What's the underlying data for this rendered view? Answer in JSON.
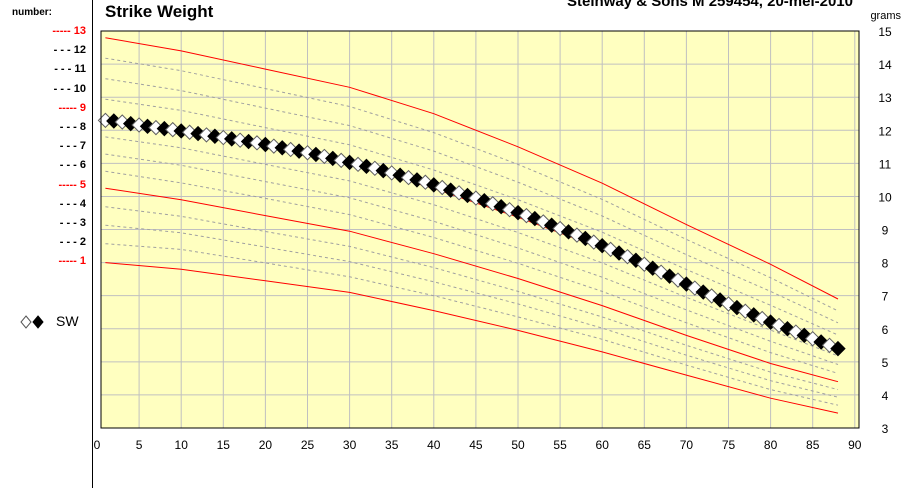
{
  "legend": {
    "header": "number:",
    "items": [
      {
        "label": "----- 13",
        "color": "#ff0000"
      },
      {
        "label": "- - - 12",
        "color": "#000000"
      },
      {
        "label": "- - - 11",
        "color": "#000000"
      },
      {
        "label": "- - - 10",
        "color": "#000000"
      },
      {
        "label": "----- 9",
        "color": "#ff0000"
      },
      {
        "label": "- - - 8",
        "color": "#000000"
      },
      {
        "label": "- - - 7",
        "color": "#000000"
      },
      {
        "label": "- - - 6",
        "color": "#000000"
      },
      {
        "label": "----- 5",
        "color": "#ff0000"
      },
      {
        "label": "- - - 4",
        "color": "#000000"
      },
      {
        "label": "- - - 3",
        "color": "#000000"
      },
      {
        "label": "- - - 2",
        "color": "#000000"
      },
      {
        "label": "----- 1",
        "color": "#ff0000"
      }
    ],
    "series_label": "SW"
  },
  "colors": {
    "plot_bg": "#ffffc0",
    "grid": "#c0c0c0",
    "red_line": "#ff0000",
    "dashed_line": "#a0a0a0"
  },
  "chart_data": {
    "type": "line",
    "title": "Strike Weight",
    "subtitle": "Steinway & Sons M 259454, 20-mei-2010",
    "ylabel": "grams",
    "xlim": [
      0,
      90
    ],
    "ylim": [
      3,
      15
    ],
    "x_ticks": [
      0,
      5,
      10,
      15,
      20,
      25,
      30,
      35,
      40,
      45,
      50,
      55,
      60,
      65,
      70,
      75,
      80,
      85,
      90
    ],
    "y_ticks": [
      3,
      4,
      5,
      6,
      7,
      8,
      9,
      10,
      11,
      12,
      13,
      14,
      15
    ],
    "grid": true,
    "reference_curves": [
      {
        "name": "13",
        "style": "solid",
        "points": [
          [
            1,
            14.8
          ],
          [
            10,
            14.4
          ],
          [
            20,
            13.85
          ],
          [
            30,
            13.3
          ],
          [
            40,
            12.5
          ],
          [
            50,
            11.5
          ],
          [
            60,
            10.4
          ],
          [
            70,
            9.15
          ],
          [
            80,
            7.95
          ],
          [
            88,
            6.9
          ]
        ]
      },
      {
        "name": "12",
        "style": "dashed",
        "points": [
          [
            1,
            14.18
          ],
          [
            10,
            13.8
          ],
          [
            20,
            13.26
          ],
          [
            30,
            12.72
          ],
          [
            40,
            11.93
          ],
          [
            50,
            10.97
          ],
          [
            60,
            9.91
          ],
          [
            70,
            8.7
          ],
          [
            80,
            7.54
          ],
          [
            88,
            6.54
          ]
        ]
      },
      {
        "name": "11",
        "style": "dashed",
        "points": [
          [
            1,
            13.56
          ],
          [
            10,
            13.2
          ],
          [
            20,
            12.67
          ],
          [
            30,
            12.14
          ],
          [
            40,
            11.37
          ],
          [
            50,
            10.43
          ],
          [
            60,
            9.41
          ],
          [
            70,
            8.24
          ],
          [
            80,
            7.13
          ],
          [
            88,
            6.18
          ]
        ]
      },
      {
        "name": "10",
        "style": "dashed",
        "points": [
          [
            1,
            12.94
          ],
          [
            10,
            12.6
          ],
          [
            20,
            12.08
          ],
          [
            30,
            11.56
          ],
          [
            40,
            10.8
          ],
          [
            50,
            9.9
          ],
          [
            60,
            8.92
          ],
          [
            70,
            7.79
          ],
          [
            80,
            6.71
          ],
          [
            88,
            5.81
          ]
        ]
      },
      {
        "name": "9",
        "style": "solid",
        "points": [
          [
            1,
            12.32
          ],
          [
            10,
            12.0
          ],
          [
            20,
            11.48
          ],
          [
            30,
            10.98
          ],
          [
            40,
            10.24
          ],
          [
            50,
            9.37
          ],
          [
            60,
            8.42
          ],
          [
            70,
            7.34
          ],
          [
            80,
            6.3
          ],
          [
            88,
            5.45
          ]
        ]
      },
      {
        "name": "8",
        "style": "dashed",
        "points": [
          [
            1,
            11.8
          ],
          [
            10,
            11.47
          ],
          [
            20,
            10.97
          ],
          [
            30,
            10.47
          ],
          [
            40,
            9.75
          ],
          [
            50,
            8.91
          ],
          [
            60,
            7.99
          ],
          [
            70,
            6.95
          ],
          [
            80,
            5.96
          ],
          [
            88,
            5.18
          ]
        ]
      },
      {
        "name": "7",
        "style": "dashed",
        "points": [
          [
            1,
            11.28
          ],
          [
            10,
            10.94
          ],
          [
            20,
            10.45
          ],
          [
            30,
            9.96
          ],
          [
            40,
            9.25
          ],
          [
            50,
            8.44
          ],
          [
            60,
            7.56
          ],
          [
            70,
            6.57
          ],
          [
            80,
            5.62
          ],
          [
            88,
            4.92
          ]
        ]
      },
      {
        "name": "6",
        "style": "dashed",
        "points": [
          [
            1,
            10.76
          ],
          [
            10,
            10.41
          ],
          [
            20,
            9.94
          ],
          [
            30,
            9.45
          ],
          [
            40,
            8.76
          ],
          [
            50,
            7.98
          ],
          [
            60,
            7.13
          ],
          [
            70,
            6.18
          ],
          [
            80,
            5.28
          ],
          [
            88,
            4.65
          ]
        ]
      },
      {
        "name": "5",
        "style": "solid",
        "points": [
          [
            1,
            10.25
          ],
          [
            10,
            9.9
          ],
          [
            20,
            9.42
          ],
          [
            30,
            8.95
          ],
          [
            40,
            8.27
          ],
          [
            50,
            7.52
          ],
          [
            60,
            6.7
          ],
          [
            70,
            5.8
          ],
          [
            80,
            4.95
          ],
          [
            88,
            4.4
          ]
        ]
      },
      {
        "name": "4",
        "style": "dashed",
        "points": [
          [
            1,
            9.69
          ],
          [
            10,
            9.4
          ],
          [
            20,
            8.94
          ],
          [
            30,
            8.49
          ],
          [
            40,
            7.85
          ],
          [
            50,
            7.13
          ],
          [
            60,
            6.36
          ],
          [
            70,
            5.5
          ],
          [
            80,
            4.69
          ],
          [
            88,
            4.16
          ]
        ]
      },
      {
        "name": "3",
        "style": "dashed",
        "points": [
          [
            1,
            9.13
          ],
          [
            10,
            8.9
          ],
          [
            20,
            8.47
          ],
          [
            30,
            8.03
          ],
          [
            40,
            7.42
          ],
          [
            50,
            6.75
          ],
          [
            60,
            6.02
          ],
          [
            70,
            5.2
          ],
          [
            80,
            4.43
          ],
          [
            88,
            3.93
          ]
        ]
      },
      {
        "name": "2",
        "style": "dashed",
        "points": [
          [
            1,
            8.57
          ],
          [
            10,
            8.4
          ],
          [
            20,
            7.99
          ],
          [
            30,
            7.57
          ],
          [
            40,
            7.0
          ],
          [
            50,
            6.36
          ],
          [
            60,
            5.68
          ],
          [
            70,
            4.9
          ],
          [
            80,
            4.16
          ],
          [
            88,
            3.69
          ]
        ]
      },
      {
        "name": "1",
        "style": "solid",
        "points": [
          [
            1,
            8.0
          ],
          [
            10,
            7.8
          ],
          [
            20,
            7.45
          ],
          [
            30,
            7.1
          ],
          [
            40,
            6.55
          ],
          [
            50,
            5.95
          ],
          [
            60,
            5.3
          ],
          [
            70,
            4.6
          ],
          [
            80,
            3.9
          ],
          [
            88,
            3.45
          ]
        ]
      }
    ],
    "series": [
      {
        "name": "SW",
        "points": [
          [
            1,
            12.3
          ],
          [
            2,
            12.28
          ],
          [
            3,
            12.25
          ],
          [
            4,
            12.2
          ],
          [
            5,
            12.16
          ],
          [
            6,
            12.12
          ],
          [
            7,
            12.08
          ],
          [
            8,
            12.05
          ],
          [
            9,
            12.02
          ],
          [
            10,
            11.98
          ],
          [
            11,
            11.94
          ],
          [
            12,
            11.9
          ],
          [
            13,
            11.86
          ],
          [
            14,
            11.82
          ],
          [
            15,
            11.78
          ],
          [
            16,
            11.74
          ],
          [
            17,
            11.7
          ],
          [
            18,
            11.66
          ],
          [
            19,
            11.62
          ],
          [
            20,
            11.57
          ],
          [
            21,
            11.52
          ],
          [
            22,
            11.47
          ],
          [
            23,
            11.42
          ],
          [
            24,
            11.37
          ],
          [
            25,
            11.32
          ],
          [
            26,
            11.27
          ],
          [
            27,
            11.21
          ],
          [
            28,
            11.15
          ],
          [
            29,
            11.09
          ],
          [
            30,
            11.03
          ],
          [
            31,
            10.97
          ],
          [
            32,
            10.91
          ],
          [
            33,
            10.85
          ],
          [
            34,
            10.78
          ],
          [
            35,
            10.71
          ],
          [
            36,
            10.64
          ],
          [
            37,
            10.57
          ],
          [
            38,
            10.5
          ],
          [
            39,
            10.43
          ],
          [
            40,
            10.35
          ],
          [
            41,
            10.27
          ],
          [
            42,
            10.19
          ],
          [
            43,
            10.11
          ],
          [
            44,
            10.03
          ],
          [
            45,
            9.95
          ],
          [
            46,
            9.87
          ],
          [
            47,
            9.78
          ],
          [
            48,
            9.69
          ],
          [
            49,
            9.6
          ],
          [
            50,
            9.51
          ],
          [
            51,
            9.42
          ],
          [
            52,
            9.33
          ],
          [
            53,
            9.23
          ],
          [
            54,
            9.13
          ],
          [
            55,
            9.03
          ],
          [
            56,
            8.93
          ],
          [
            57,
            8.83
          ],
          [
            58,
            8.73
          ],
          [
            59,
            8.62
          ],
          [
            60,
            8.51
          ],
          [
            61,
            8.4
          ],
          [
            62,
            8.29
          ],
          [
            63,
            8.18
          ],
          [
            64,
            8.07
          ],
          [
            65,
            7.95
          ],
          [
            66,
            7.83
          ],
          [
            67,
            7.71
          ],
          [
            68,
            7.59
          ],
          [
            69,
            7.47
          ],
          [
            70,
            7.35
          ],
          [
            71,
            7.23
          ],
          [
            72,
            7.11
          ],
          [
            73,
            6.99
          ],
          [
            74,
            6.87
          ],
          [
            75,
            6.75
          ],
          [
            76,
            6.64
          ],
          [
            77,
            6.53
          ],
          [
            78,
            6.42
          ],
          [
            79,
            6.31
          ],
          [
            80,
            6.2
          ],
          [
            81,
            6.1
          ],
          [
            82,
            6.0
          ],
          [
            83,
            5.9
          ],
          [
            84,
            5.8
          ],
          [
            85,
            5.7
          ],
          [
            86,
            5.6
          ],
          [
            87,
            5.5
          ],
          [
            88,
            5.4
          ]
        ]
      }
    ]
  }
}
